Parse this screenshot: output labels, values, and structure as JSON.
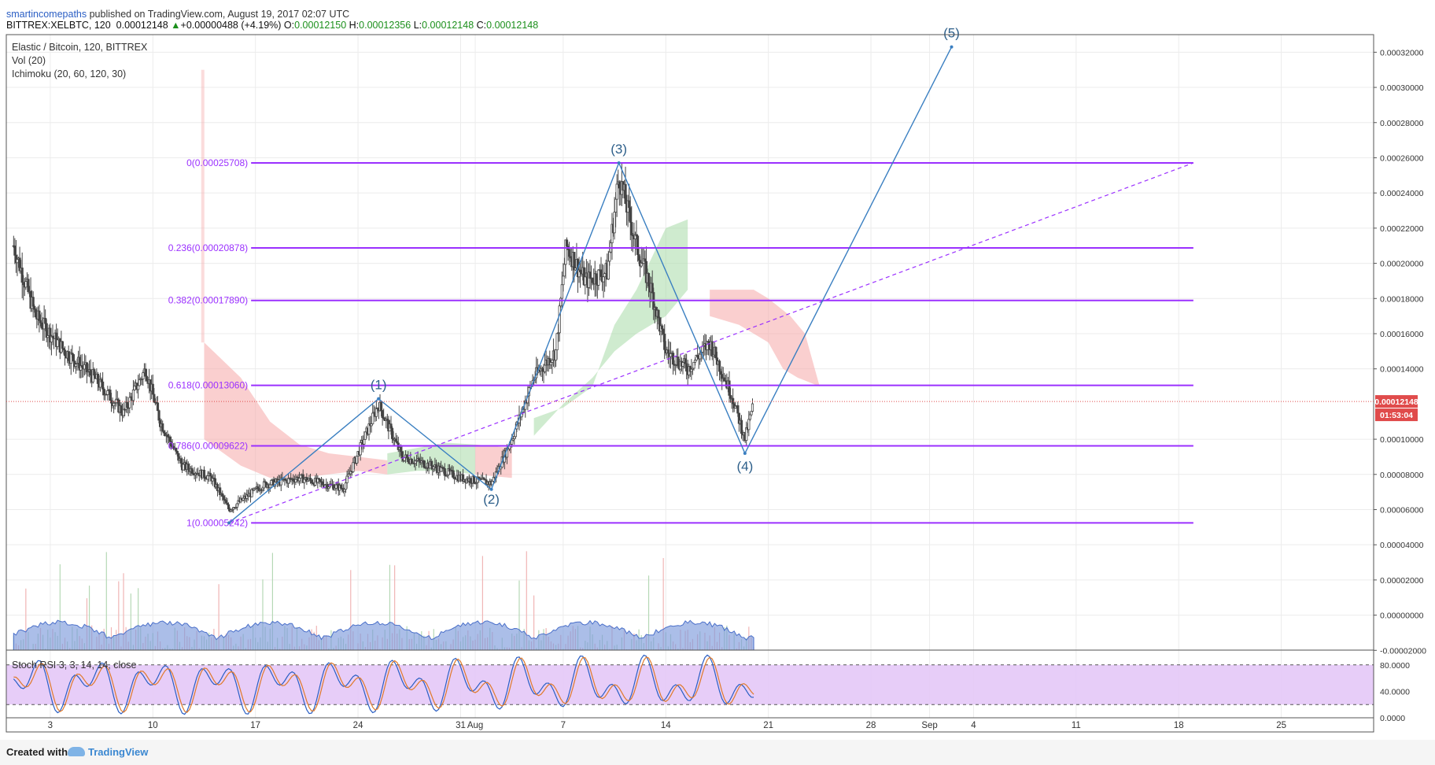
{
  "header": {
    "author": "smartincomepaths",
    "published": "published on TradingView.com, August 19, 2017 02:07 UTC",
    "symbol": "BITTREX:XELBTC, 120",
    "last": "0.00012148",
    "change": "+0.00000488 (+4.19%)",
    "o_label": "O:",
    "o_value": "0.00012150",
    "h_label": "H:",
    "h_value": "0.00012356",
    "l_label": "L:",
    "l_value": "0.00012148",
    "c_label": "C:",
    "c_value": "0.00012148"
  },
  "legend": {
    "line1": "Elastic / Bitcoin, 120, BITTREX",
    "line2": "Vol (20)",
    "line3": "Ichimoku (20, 60, 120, 30)"
  },
  "oscillator_label": "Stoch RSI 3, 3, 14, 14, close",
  "footer": {
    "created": "Created with",
    "brand": "TradingView"
  },
  "price_badge": "0.00012148",
  "countdown_badge": "01:53:04",
  "colors": {
    "fib": "#9b30ff",
    "fib_text": "#9b30ff",
    "wave": "#3a7fc1",
    "wave_label": "#2d5f8a",
    "cloud_green": "#a8dba8",
    "cloud_red": "#f5a8a8",
    "candle": "#444444",
    "badge": "#e04b4b",
    "stoch_fill": "#e4c8f7",
    "vol_area": "#7e9bdc"
  },
  "chart_data": {
    "type": "line",
    "title": "Elastic / Bitcoin, 120, BITTREX",
    "x_ticks": [
      "3",
      "10",
      "17",
      "24",
      "31",
      "Aug",
      "7",
      "14",
      "21",
      "28",
      "Sep",
      "4",
      "11",
      "18",
      "25"
    ],
    "x_tick_days": [
      3,
      10,
      17,
      24,
      31,
      32,
      38,
      45,
      52,
      59,
      63,
      66,
      73,
      80,
      87
    ],
    "y_ticks": [
      "0.00032000",
      "0.00030000",
      "0.00028000",
      "0.00026000",
      "0.00024000",
      "0.00022000",
      "0.00020000",
      "0.00018000",
      "0.00016000",
      "0.00014000",
      "0.00010000",
      "0.00008000",
      "0.00006000",
      "0.00004000",
      "0.00002000",
      "0.00000000",
      "-0.00002000"
    ],
    "y_tick_values": [
      0.00032,
      0.0003,
      0.00028,
      0.00026,
      0.00024,
      0.00022,
      0.0002,
      0.00018,
      0.00016,
      0.00014,
      0.0001,
      8e-05,
      6e-05,
      4e-05,
      2e-05,
      0,
      -2e-05
    ],
    "osc_ticks": [
      "80.0000",
      "40.0000",
      "0.0000"
    ],
    "osc_tick_values": [
      80,
      40,
      0
    ],
    "current_price": 0.00012148,
    "fib_levels": [
      {
        "label": "0(0.00025708)",
        "price": 0.00025708
      },
      {
        "label": "0.236(0.00020878)",
        "price": 0.00020878
      },
      {
        "label": "0.382(0.00017890)",
        "price": 0.0001789
      },
      {
        "label": "0.618(0.00013060)",
        "price": 0.0001306
      },
      {
        "label": "0.786(0.00009622)",
        "price": 9.622e-05
      },
      {
        "label": "1(0.00005242)",
        "price": 5.242e-05
      }
    ],
    "waves": [
      {
        "label": "",
        "day": 15.2,
        "price": 5.242e-05
      },
      {
        "label": "(1)",
        "day": 25.4,
        "price": 0.000123
      },
      {
        "label": "(2)",
        "day": 33.1,
        "price": 7.15e-05
      },
      {
        "label": "(3)",
        "day": 41.8,
        "price": 0.00025708
      },
      {
        "label": "(4)",
        "day": 50.4,
        "price": 9.2e-05
      },
      {
        "label": "(5)",
        "day": 64.5,
        "price": 0.000323
      }
    ],
    "trendline": [
      {
        "day": 15.2,
        "price": 5.242e-05
      },
      {
        "day": 81.0,
        "price": 0.00025708
      }
    ],
    "fib_span_days": [
      15.2,
      81.0
    ],
    "price_path": [
      {
        "day": 0.5,
        "price": 0.00021
      },
      {
        "day": 2.0,
        "price": 0.00017
      },
      {
        "day": 4.0,
        "price": 0.00015
      },
      {
        "day": 6.0,
        "price": 0.000135
      },
      {
        "day": 8.0,
        "price": 0.000115
      },
      {
        "day": 9.5,
        "price": 0.00014
      },
      {
        "day": 10.5,
        "price": 0.00011
      },
      {
        "day": 12.0,
        "price": 8.5e-05
      },
      {
        "day": 14.0,
        "price": 7.8e-05
      },
      {
        "day": 15.2,
        "price": 6e-05
      },
      {
        "day": 17.5,
        "price": 7.4e-05
      },
      {
        "day": 20.0,
        "price": 7.8e-05
      },
      {
        "day": 23.0,
        "price": 7.2e-05
      },
      {
        "day": 25.4,
        "price": 0.00012
      },
      {
        "day": 27.0,
        "price": 9e-05
      },
      {
        "day": 29.0,
        "price": 8.5e-05
      },
      {
        "day": 31.0,
        "price": 7.8e-05
      },
      {
        "day": 33.1,
        "price": 7.5e-05
      },
      {
        "day": 34.5,
        "price": 0.0001
      },
      {
        "day": 36.0,
        "price": 0.000135
      },
      {
        "day": 37.5,
        "price": 0.00015
      },
      {
        "day": 38.2,
        "price": 0.00021
      },
      {
        "day": 39.5,
        "price": 0.00019
      },
      {
        "day": 41.0,
        "price": 0.000195
      },
      {
        "day": 41.8,
        "price": 0.00025
      },
      {
        "day": 43.0,
        "price": 0.00021
      },
      {
        "day": 44.0,
        "price": 0.000185
      },
      {
        "day": 45.0,
        "price": 0.00015
      },
      {
        "day": 46.5,
        "price": 0.00014
      },
      {
        "day": 48.0,
        "price": 0.000155
      },
      {
        "day": 49.5,
        "price": 0.000125
      },
      {
        "day": 50.4,
        "price": 0.0001
      },
      {
        "day": 51.0,
        "price": 0.000121
      }
    ],
    "cloud_segments": [
      {
        "color": "red",
        "pts": [
          [
            13.5,
            0.000155
          ],
          [
            16.0,
            0.000135
          ],
          [
            18.0,
            0.00011
          ],
          [
            20.0,
            9.7e-05
          ],
          [
            22.0,
            9.2e-05
          ],
          [
            24.0,
            9e-05
          ],
          [
            26.0,
            8.8e-05
          ],
          [
            26.0,
            8e-05
          ],
          [
            24.0,
            8.2e-05
          ],
          [
            22.0,
            8e-05
          ],
          [
            20.0,
            7.8e-05
          ],
          [
            18.0,
            7.8e-05
          ],
          [
            16.0,
            8.5e-05
          ],
          [
            13.5,
            0.0001
          ]
        ]
      },
      {
        "color": "green",
        "pts": [
          [
            26.0,
            9.2e-05
          ],
          [
            28.0,
            9.5e-05
          ],
          [
            30.0,
            9.8e-05
          ],
          [
            32.0,
            9.7e-05
          ],
          [
            32.0,
            8e-05
          ],
          [
            30.0,
            8.2e-05
          ],
          [
            28.0,
            8.2e-05
          ],
          [
            26.0,
            8e-05
          ]
        ]
      },
      {
        "color": "red",
        "pts": [
          [
            32.0,
            9.7e-05
          ],
          [
            34.5,
            9.5e-05
          ],
          [
            34.5,
            7.8e-05
          ],
          [
            32.0,
            8e-05
          ]
        ]
      },
      {
        "color": "green",
        "pts": [
          [
            36.0,
            0.000112
          ],
          [
            38.0,
            0.000118
          ],
          [
            40.0,
            0.00013
          ],
          [
            41.5,
            0.000165
          ],
          [
            43.0,
            0.000185
          ],
          [
            45.0,
            0.00022
          ],
          [
            46.5,
            0.000225
          ],
          [
            46.5,
            0.000185
          ],
          [
            45.0,
            0.00017
          ],
          [
            43.0,
            0.00016
          ],
          [
            41.5,
            0.00015
          ],
          [
            40.0,
            0.000135
          ],
          [
            38.0,
            0.00012
          ],
          [
            36.0,
            0.000102
          ]
        ]
      },
      {
        "color": "red",
        "pts": [
          [
            48.0,
            0.000185
          ],
          [
            51.0,
            0.000185
          ],
          [
            52.0,
            0.00018
          ],
          [
            53.5,
            0.00017
          ],
          [
            54.5,
            0.00016
          ],
          [
            55.5,
            0.00013
          ],
          [
            54.0,
            0.000135
          ],
          [
            53.0,
            0.00014
          ],
          [
            52.0,
            0.000155
          ],
          [
            50.0,
            0.000165
          ],
          [
            48.0,
            0.00017
          ]
        ]
      }
    ]
  }
}
